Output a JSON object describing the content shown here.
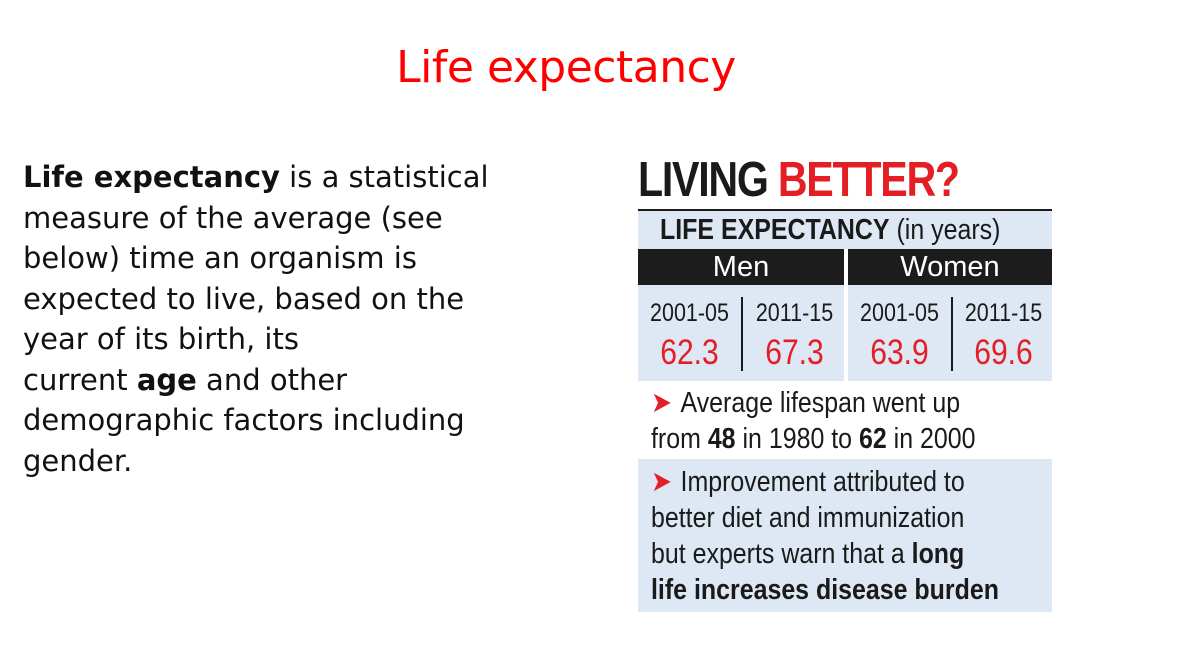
{
  "slide": {
    "title": "Life expectancy"
  },
  "body": {
    "line1_bold": "Life expectancy",
    "line1_rest": " is a statistical",
    "line2": "measure of the average (see",
    "line3": "below) time an organism is",
    "line4": "expected to live, based on the",
    "line5": "year of its birth, its",
    "line6_pre": "current ",
    "line6_bold": "age",
    "line6_post": " and other",
    "line7": "demographic factors including",
    "line8": "gender."
  },
  "infographic": {
    "headline_dark": "LIVING ",
    "headline_red": "BETTER?",
    "subtitle_bold": "LIFE EXPECTANCY",
    "subtitle_rest": " (in years)",
    "groups": [
      "Men",
      "Women"
    ],
    "columns": [
      {
        "period": "2001-05",
        "value": "62.3"
      },
      {
        "period": "2011-15",
        "value": "67.3"
      },
      {
        "period": "2001-05",
        "value": "63.9"
      },
      {
        "period": "2011-15",
        "value": "69.6"
      }
    ],
    "arrow_glyph": "➤",
    "bullet1": {
      "line1": "Average lifespan went up",
      "line2_a": "from ",
      "line2_b": "48",
      "line2_c": " in 1980 to ",
      "line2_d": "62",
      "line2_e": " in 2000"
    },
    "bullet2": {
      "line1": "Improvement attributed to",
      "line2": "better diet and immunization",
      "line3_a": "but experts warn that a ",
      "line3_b": "long",
      "line4": "life increases disease burden"
    },
    "colors": {
      "accent_red": "#e31e24",
      "band_blue": "#dde8f4",
      "bar_dark": "#1c1c1c",
      "title_red": "#ff0000"
    }
  }
}
